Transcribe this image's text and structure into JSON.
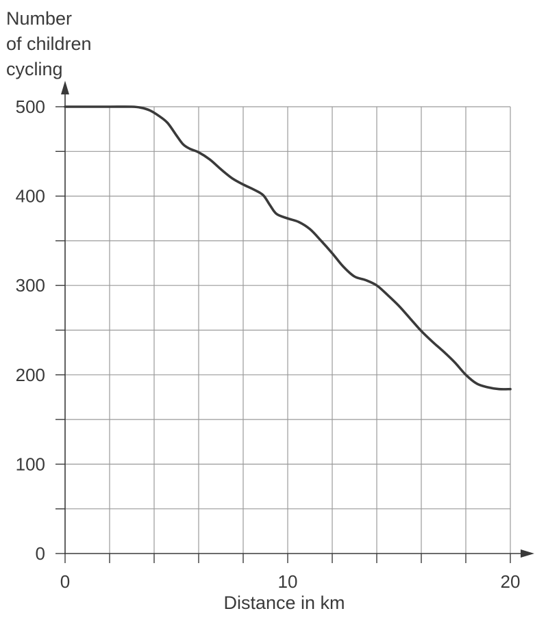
{
  "chart_data": {
    "type": "line",
    "title": "",
    "ylabel_lines": [
      "Number",
      "of children",
      "cycling"
    ],
    "xlabel": "Distance in km",
    "xlim": [
      0,
      20
    ],
    "ylim": [
      0,
      500
    ],
    "x_ticks": [
      0,
      10,
      20
    ],
    "y_ticks": [
      0,
      100,
      200,
      300,
      400,
      500
    ],
    "x_grid_step": 2,
    "y_grid_step": 50,
    "grid": true,
    "line_color": "#3a3a3a",
    "grid_color": "#9a9a9a",
    "series": [
      {
        "x": [
          0,
          1,
          2,
          3,
          3.4,
          3.8,
          4.2,
          4.6,
          5.0,
          5.3,
          5.6,
          6.0,
          6.5,
          7.0,
          7.5,
          8.0,
          8.5,
          8.9,
          9.2,
          9.5,
          10.0,
          10.5,
          11.0,
          11.5,
          12.0,
          12.5,
          13.0,
          13.5,
          14.0,
          14.5,
          15.0,
          15.5,
          16.0,
          16.5,
          17.0,
          17.5,
          18.0,
          18.5,
          19.0,
          19.5,
          20.0
        ],
        "y": [
          500,
          500,
          500,
          500,
          499,
          496,
          490,
          482,
          468,
          458,
          453,
          449,
          441,
          430,
          420,
          413,
          407,
          401,
          390,
          380,
          375,
          371,
          363,
          350,
          336,
          321,
          310,
          306,
          300,
          289,
          277,
          263,
          249,
          237,
          226,
          214,
          200,
          190,
          186,
          184,
          184
        ]
      }
    ]
  }
}
